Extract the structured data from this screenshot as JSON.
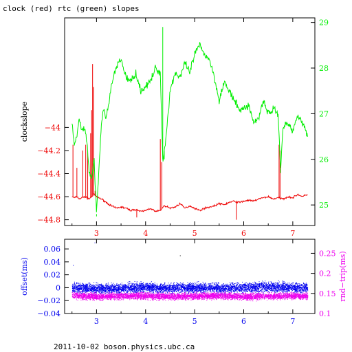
{
  "title": "clock (red) rtc (green) slopes",
  "footer": "2011-10-02 boson.physics.ubc.ca",
  "colors": {
    "red": "#ee0000",
    "green": "#00ee00",
    "blue": "#0000ee",
    "magenta": "#ee00ee",
    "axis": "#000000"
  },
  "chart_data": [
    {
      "type": "line",
      "ylabel": "clockslope",
      "y2label": "",
      "xlim": [
        2.35,
        7.45
      ],
      "ylim": [
        -44.85,
        -43.05
      ],
      "y2lim": [
        24.55,
        29.1
      ],
      "xticks": [
        3,
        4,
        5,
        6,
        7
      ],
      "xticklabels": [
        "3",
        "4",
        "5",
        "6",
        "7"
      ],
      "yticks": [
        -44.8,
        -44.6,
        -44.4,
        -44.2,
        -44
      ],
      "yticklabels": [
        "−44.8",
        "−44.6",
        "−44.4",
        "−44.2",
        "−44"
      ],
      "y2ticks": [
        25,
        26,
        27,
        28,
        29
      ],
      "y2ticklabels": [
        "25",
        "26",
        "27",
        "28",
        "29"
      ],
      "series": [
        {
          "color": "red",
          "axis": "left",
          "x": [
            2.5,
            2.55,
            2.6,
            2.65,
            2.7,
            2.75,
            2.8,
            2.85,
            2.9,
            2.95,
            3.0,
            3.1,
            3.2,
            3.3,
            3.4,
            3.5,
            3.6,
            3.7,
            3.8,
            3.9,
            4.0,
            4.1,
            4.2,
            4.3,
            4.35,
            4.4,
            4.5,
            4.6,
            4.7,
            4.8,
            4.9,
            5.0,
            5.1,
            5.2,
            5.3,
            5.4,
            5.5,
            5.6,
            5.7,
            5.8,
            5.9,
            6.0,
            6.1,
            6.2,
            6.3,
            6.4,
            6.5,
            6.6,
            6.7,
            6.8,
            6.9,
            7.0,
            7.1,
            7.2,
            7.3
          ],
          "values": [
            -44.6,
            -44.61,
            -44.6,
            -44.62,
            -44.61,
            -44.6,
            -44.61,
            -44.62,
            -44.6,
            -44.58,
            -44.6,
            -44.62,
            -44.65,
            -44.68,
            -44.7,
            -44.69,
            -44.7,
            -44.72,
            -44.71,
            -44.73,
            -44.72,
            -44.7,
            -44.73,
            -44.72,
            -44.69,
            -44.68,
            -44.7,
            -44.69,
            -44.66,
            -44.7,
            -44.68,
            -44.7,
            -44.72,
            -44.7,
            -44.69,
            -44.68,
            -44.66,
            -44.67,
            -44.65,
            -44.64,
            -44.65,
            -44.64,
            -44.63,
            -44.64,
            -44.62,
            -44.61,
            -44.6,
            -44.62,
            -44.61,
            -44.62,
            -44.6,
            -44.61,
            -44.58,
            -44.6,
            -44.58
          ]
        },
        {
          "color": "green",
          "axis": "right",
          "x": [
            2.5,
            2.55,
            2.6,
            2.65,
            2.7,
            2.75,
            2.8,
            2.85,
            2.9,
            2.95,
            3.0,
            3.05,
            3.1,
            3.15,
            3.2,
            3.3,
            3.4,
            3.5,
            3.6,
            3.7,
            3.8,
            3.9,
            4.0,
            4.1,
            4.2,
            4.3,
            4.35,
            4.4,
            4.5,
            4.6,
            4.7,
            4.8,
            4.9,
            5.0,
            5.1,
            5.2,
            5.3,
            5.4,
            5.5,
            5.6,
            5.7,
            5.8,
            5.9,
            6.0,
            6.1,
            6.2,
            6.3,
            6.4,
            6.5,
            6.6,
            6.7,
            6.75,
            6.8,
            6.9,
            7.0,
            7.1,
            7.2,
            7.3
          ],
          "values": [
            26.8,
            26.3,
            26.5,
            26.9,
            26.6,
            26.7,
            26.4,
            25.7,
            25.6,
            26.0,
            24.8,
            25.8,
            26.8,
            27.1,
            26.9,
            27.6,
            28.0,
            28.2,
            27.8,
            27.7,
            27.9,
            27.5,
            27.6,
            27.7,
            28.0,
            27.9,
            26.0,
            26.3,
            27.5,
            27.9,
            27.8,
            28.1,
            27.9,
            28.3,
            28.5,
            28.3,
            28.2,
            27.8,
            27.3,
            27.7,
            27.5,
            27.3,
            27.1,
            27.1,
            27.2,
            26.8,
            26.9,
            27.3,
            27.0,
            27.1,
            27.0,
            25.8,
            26.7,
            26.8,
            26.6,
            27.0,
            26.8,
            26.5
          ]
        }
      ]
    },
    {
      "type": "scatter",
      "ylabel": "offset(ms)",
      "y2label": "rnd−trip(ms)",
      "xlim": [
        2.35,
        7.45
      ],
      "ylim": [
        -0.04,
        0.075
      ],
      "y2lim": [
        0.1,
        0.285
      ],
      "xticks": [
        3,
        4,
        5,
        6,
        7
      ],
      "xticklabels": [
        "3",
        "4",
        "5",
        "6",
        "7"
      ],
      "yticks": [
        -0.04,
        -0.02,
        0,
        0.02,
        0.04,
        0.06
      ],
      "yticklabels": [
        "−0.04",
        "−0.02",
        "0",
        "0.02",
        "0.04",
        "0.06"
      ],
      "y2ticks": [
        0.1,
        0.15,
        0.2,
        0.25
      ],
      "y2ticklabels": [
        "0.1",
        "0.15",
        "0.2",
        "0.25"
      ],
      "series": [
        {
          "color": "blue",
          "axis": "left",
          "x": [
            2.5,
            3.0,
            3.5,
            4.0,
            4.5,
            5.0,
            5.5,
            6.0,
            6.5,
            7.0,
            7.3
          ],
          "values": [
            0.0,
            -0.002,
            -0.001,
            0.0,
            -0.001,
            0.0,
            -0.001,
            0.0,
            0.001,
            0.0,
            -0.001
          ]
        },
        {
          "color": "magenta",
          "axis": "right",
          "x": [
            2.5,
            3.0,
            3.5,
            4.0,
            4.5,
            5.0,
            5.5,
            6.0,
            6.5,
            7.0,
            7.3
          ],
          "values": [
            0.145,
            0.142,
            0.143,
            0.144,
            0.142,
            0.143,
            0.144,
            0.142,
            0.143,
            0.144,
            0.143
          ]
        }
      ]
    }
  ]
}
